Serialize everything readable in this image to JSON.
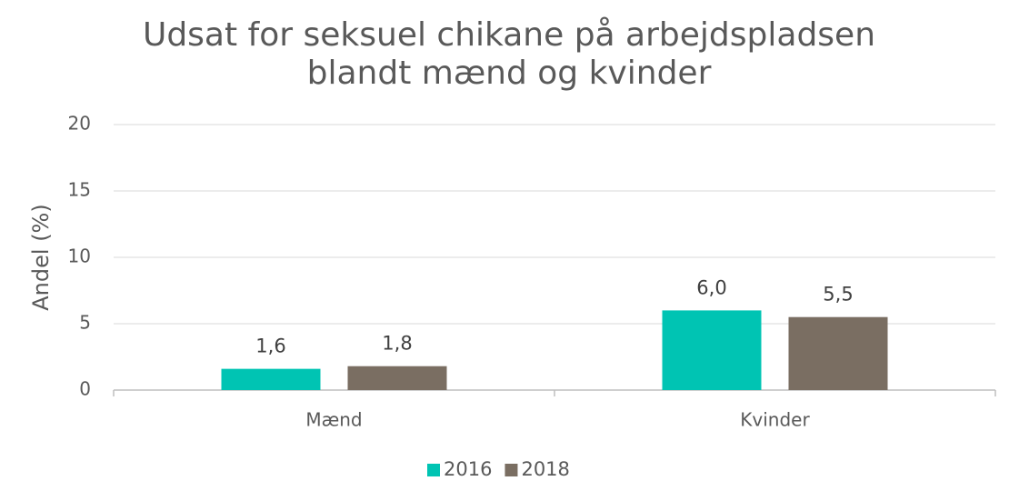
{
  "chart_data": {
    "type": "bar",
    "title": [
      "Udsat for seksuel chikane på arbejdspladsen",
      "blandt mænd og kvinder"
    ],
    "y_label": "Andel (%)",
    "categories": [
      "Mænd",
      "Kvinder"
    ],
    "series": [
      {
        "name": "2016",
        "color": "#00c4b3",
        "values": [
          1.6,
          6.0
        ],
        "value_labels": [
          "1,6",
          "6,0"
        ]
      },
      {
        "name": "2018",
        "color": "#7a6e62",
        "values": [
          1.8,
          5.5
        ],
        "value_labels": [
          "1,8",
          "5,5"
        ]
      }
    ],
    "ylim": [
      0,
      20
    ],
    "yticks": [
      0,
      5,
      10,
      15,
      20
    ],
    "grid": true,
    "legend": "bottom"
  }
}
